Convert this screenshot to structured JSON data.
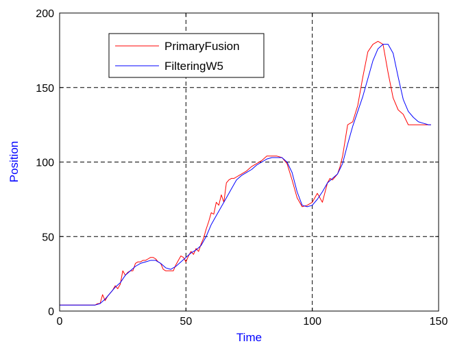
{
  "chart_data": {
    "type": "line",
    "xlabel": "Time",
    "ylabel": "Position",
    "label_color": "#0000ff",
    "xlim": [
      0,
      150
    ],
    "ylim": [
      0,
      200
    ],
    "xticks": [
      0,
      50,
      100,
      150
    ],
    "yticks": [
      0,
      50,
      100,
      150,
      200
    ],
    "xtick_labels": [
      "0",
      "50",
      "100",
      "150"
    ],
    "ytick_labels": [
      "0",
      "50",
      "100",
      "150",
      "200"
    ],
    "grid": "dashed, on major ticks",
    "legend_position": "top-left",
    "series": [
      {
        "name": "PrimaryFusion",
        "color": "#ff0000",
        "x": [
          0,
          2,
          4,
          6,
          8,
          10,
          12,
          14,
          15,
          16,
          17,
          18,
          19,
          20,
          21,
          22,
          23,
          24,
          25,
          26,
          27,
          28,
          29,
          30,
          31,
          32,
          33,
          34,
          35,
          36,
          37,
          38,
          39,
          40,
          41,
          42,
          43,
          44,
          45,
          46,
          47,
          48,
          49,
          50,
          51,
          52,
          53,
          54,
          55,
          56,
          57,
          58,
          59,
          60,
          61,
          62,
          63,
          64,
          65,
          66,
          67,
          68,
          69,
          70,
          72,
          74,
          76,
          78,
          80,
          82,
          84,
          86,
          88,
          90,
          92,
          94,
          96,
          98,
          100,
          102,
          104,
          106,
          107,
          108,
          109,
          110,
          111,
          112,
          114,
          116,
          118,
          120,
          122,
          124,
          126,
          128,
          130,
          132,
          134,
          136,
          138,
          140,
          142,
          144,
          146,
          147
        ],
        "y": [
          4,
          4,
          4,
          4,
          4,
          4,
          4,
          4,
          5,
          5,
          11,
          7,
          10,
          12,
          14,
          17,
          15,
          18,
          27,
          24,
          26,
          27,
          27,
          32,
          33,
          33,
          34,
          34,
          35,
          36,
          36,
          35,
          33,
          32,
          28,
          27,
          27,
          27,
          27,
          31,
          34,
          37,
          36,
          33,
          37,
          40,
          38,
          42,
          40,
          45,
          49,
          55,
          60,
          66,
          65,
          73,
          71,
          78,
          73,
          86,
          88,
          89,
          89,
          90,
          92,
          94,
          97,
          99,
          101,
          104,
          104,
          104,
          103,
          99,
          88,
          76,
          70,
          71,
          73,
          79,
          73,
          86,
          89,
          88,
          90,
          92,
          97,
          104,
          125,
          127,
          138,
          157,
          174,
          179,
          181,
          179,
          160,
          143,
          135,
          132,
          125,
          125,
          125,
          125,
          125,
          125
        ],
        "values_note": null
      },
      {
        "name": "FilteringW5",
        "color": "#0000ff",
        "x": [
          0,
          2,
          4,
          6,
          8,
          10,
          12,
          14,
          16,
          18,
          20,
          22,
          24,
          26,
          28,
          30,
          32,
          34,
          36,
          38,
          40,
          42,
          44,
          46,
          48,
          50,
          52,
          54,
          56,
          58,
          60,
          62,
          64,
          66,
          68,
          70,
          72,
          74,
          76,
          78,
          80,
          82,
          84,
          86,
          88,
          90,
          92,
          94,
          96,
          98,
          100,
          102,
          104,
          106,
          108,
          110,
          112,
          114,
          116,
          118,
          120,
          122,
          124,
          126,
          128,
          130,
          132,
          134,
          136,
          138,
          140,
          142,
          144,
          146,
          147
        ],
        "y": [
          4,
          4,
          4,
          4,
          4,
          4,
          4,
          4,
          5,
          8,
          12,
          16,
          19,
          24,
          27,
          30,
          32,
          33,
          34,
          34,
          32,
          29,
          28,
          30,
          33,
          36,
          39,
          41,
          44,
          50,
          58,
          64,
          70,
          76,
          82,
          88,
          91,
          93,
          95,
          98,
          100,
          102,
          103,
          103,
          103,
          100,
          93,
          80,
          71,
          70,
          71,
          75,
          80,
          86,
          89,
          92,
          99,
          112,
          124,
          134,
          144,
          156,
          168,
          176,
          179,
          179,
          173,
          157,
          142,
          134,
          130,
          127,
          126,
          125,
          125
        ]
      }
    ]
  }
}
